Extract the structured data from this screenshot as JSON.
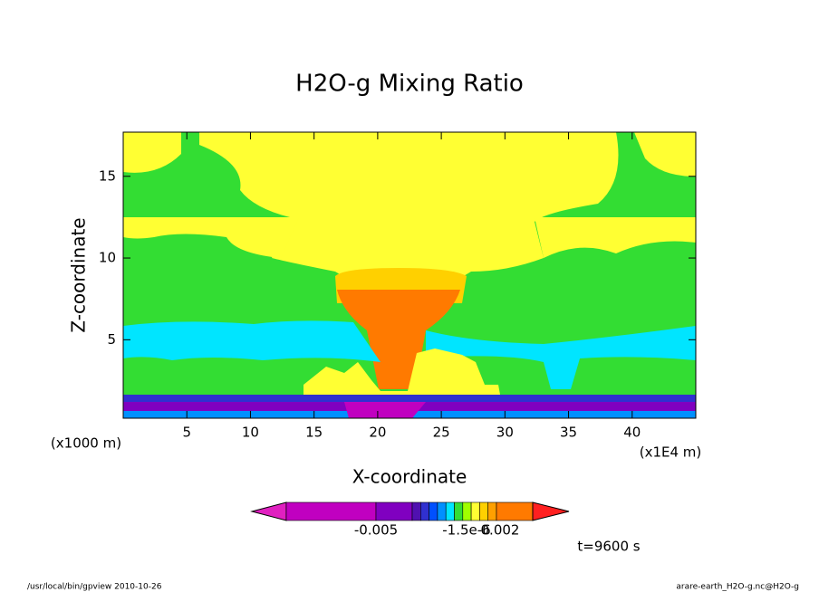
{
  "chart_data": {
    "type": "contour",
    "title": "H2O-g Mixing Ratio",
    "xlabel": "X-coordinate",
    "ylabel": "Z-coordinate",
    "x_unit": "(x1E4 m)",
    "y_unit": "(x1000 m)",
    "xlim": [
      0,
      45
    ],
    "ylim": [
      0.2,
      17.7
    ],
    "xticks": [
      5,
      10,
      15,
      20,
      25,
      30,
      35,
      40
    ],
    "yticks": [
      5,
      10,
      15
    ],
    "colorbar": {
      "colors": [
        "#e020c0",
        "#c000c0",
        "#8000c0",
        "#5010b0",
        "#3030d0",
        "#0050ff",
        "#0090ff",
        "#00e5ff",
        "#33dd33",
        "#a0ff00",
        "#ffff33",
        "#ffd000",
        "#ffa000",
        "#ff7a00",
        "#ff2020"
      ],
      "ticks": [
        {
          "value": -0.005,
          "label": "-0.005"
        },
        {
          "value": -1.5e-06,
          "label": "-1.5e-6"
        },
        {
          "value": 0.002,
          "label": "0.002"
        }
      ]
    },
    "time_label": "t=9600 s",
    "footer_left": "/usr/local/bin/gpview  2010-10-26",
    "footer_right": "arare-earth_H2O-g.nc@H2O-g"
  }
}
